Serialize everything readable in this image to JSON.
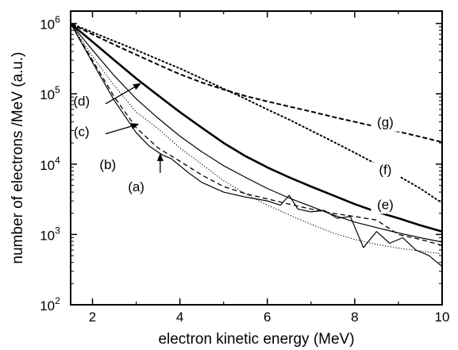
{
  "chart_data": {
    "type": "line",
    "title": "",
    "xlabel": "electron kinetic energy (MeV)",
    "ylabel": "number of electrons /MeV (a.u.)",
    "xlim": [
      1.5,
      10
    ],
    "ylim": [
      100,
      1500000
    ],
    "yscale": "log",
    "grid": false,
    "x_ticks": [
      2,
      4,
      6,
      8,
      10
    ],
    "y_ticks": [
      {
        "base": "10",
        "exp": "2",
        "value": 100
      },
      {
        "base": "10",
        "exp": "3",
        "value": 1000
      },
      {
        "base": "10",
        "exp": "4",
        "value": 10000
      },
      {
        "base": "10",
        "exp": "5",
        "value": 100000
      },
      {
        "base": "10",
        "exp": "6",
        "value": 1000000
      }
    ],
    "series": [
      {
        "name": "(a)",
        "style": "solid-thin",
        "color": "#000000",
        "x": [
          1.5,
          2.0,
          2.5,
          3.0,
          3.3,
          3.6,
          3.8,
          4.0,
          4.2,
          4.5,
          5.0,
          5.5,
          6.0,
          6.3,
          6.5,
          6.7,
          7.0,
          7.3,
          7.6,
          7.9,
          8.2,
          8.5,
          8.8,
          9.1,
          9.4,
          9.7,
          10.0
        ],
        "y": [
          1000000,
          280000,
          80000,
          28000,
          18000,
          13500,
          12000,
          9500,
          7500,
          5500,
          4000,
          3400,
          3000,
          2600,
          3600,
          2300,
          2100,
          2200,
          1700,
          1800,
          650,
          1100,
          750,
          900,
          600,
          500,
          350
        ]
      },
      {
        "name": "(b)",
        "style": "dashed",
        "color": "#000000",
        "x": [
          1.5,
          2.0,
          2.5,
          3.0,
          3.5,
          4.0,
          4.5,
          5.0,
          5.5,
          6.0,
          6.5,
          7.0,
          7.5,
          8.0,
          8.5,
          9.0,
          9.5,
          10.0
        ],
        "y": [
          1000000,
          300000,
          90000,
          33000,
          17000,
          11000,
          7000,
          4800,
          3800,
          3200,
          2700,
          2300,
          2000,
          1800,
          1600,
          1000,
          850,
          700
        ]
      },
      {
        "name": "(c)",
        "style": "dotted-fine",
        "color": "#000000",
        "x": [
          1.5,
          2.0,
          2.5,
          3.0,
          3.5,
          4.0,
          4.5,
          5.0,
          5.5,
          6.0,
          6.5,
          7.0,
          7.5,
          8.0,
          8.5,
          9.0,
          9.5,
          10.0
        ],
        "y": [
          1000000,
          340000,
          130000,
          55000,
          32000,
          17000,
          10000,
          5800,
          3800,
          2600,
          1900,
          1400,
          1050,
          850,
          720,
          640,
          580,
          530
        ]
      },
      {
        "name": "(d)",
        "style": "solid-thin",
        "color": "#000000",
        "x": [
          1.5,
          2.0,
          2.5,
          3.0,
          3.5,
          4.0,
          4.5,
          5.0,
          5.5,
          6.0,
          6.5,
          7.0,
          7.5,
          8.0,
          8.5,
          9.0,
          9.5,
          10.0
        ],
        "y": [
          1000000,
          420000,
          180000,
          85000,
          45000,
          25000,
          15000,
          9500,
          6500,
          4500,
          3300,
          2500,
          1900,
          1500,
          1250,
          1050,
          900,
          780
        ]
      },
      {
        "name": "(e)",
        "style": "solid-thick",
        "color": "#000000",
        "x": [
          1.5,
          2.0,
          2.5,
          3.0,
          3.5,
          4.0,
          4.5,
          5.0,
          5.5,
          6.0,
          6.5,
          7.0,
          7.5,
          8.0,
          8.5,
          9.0,
          9.5,
          10.0
        ],
        "y": [
          1000000,
          550000,
          300000,
          165000,
          95000,
          55000,
          33000,
          20000,
          13000,
          9000,
          6500,
          4800,
          3600,
          2700,
          2100,
          1700,
          1350,
          1100
        ]
      },
      {
        "name": "(f)",
        "style": "dotted",
        "color": "#000000",
        "x": [
          1.5,
          2.0,
          2.5,
          3.0,
          3.5,
          4.0,
          4.5,
          5.0,
          5.5,
          6.0,
          6.5,
          7.0,
          7.5,
          8.0,
          8.5,
          9.0,
          9.5,
          10.0
        ],
        "y": [
          1000000,
          750000,
          560000,
          420000,
          310000,
          230000,
          165000,
          118000,
          85000,
          60000,
          43000,
          30000,
          21000,
          14500,
          10000,
          6800,
          4500,
          2800
        ]
      },
      {
        "name": "(g)",
        "style": "dashed-thick",
        "color": "#000000",
        "x": [
          1.5,
          2.0,
          2.5,
          3.0,
          3.5,
          4.0,
          4.5,
          5.0,
          5.5,
          6.0,
          6.5,
          7.0,
          7.5,
          8.0,
          8.5,
          9.0,
          9.5,
          10.0
        ],
        "y": [
          1000000,
          700000,
          500000,
          360000,
          260000,
          190000,
          145000,
          115000,
          93000,
          78000,
          66000,
          56000,
          47000,
          40000,
          34000,
          29000,
          24500,
          20500
        ]
      }
    ],
    "annotations": [
      {
        "text": "(a)",
        "text_pos": [
          3.0,
          4100
        ],
        "arrow_from": [
          3.55,
          7500
        ],
        "arrow_to": [
          3.55,
          14000
        ]
      },
      {
        "text": "(b)",
        "text_pos": [
          2.35,
          8500
        ]
      },
      {
        "text": "(c)",
        "text_pos": [
          1.75,
          25000
        ],
        "arrow_from": [
          2.3,
          27000
        ],
        "arrow_to": [
          3.05,
          37000
        ]
      },
      {
        "text": "(d)",
        "text_pos": [
          1.75,
          68000
        ],
        "arrow_from": [
          2.3,
          72000
        ],
        "arrow_to": [
          3.1,
          140000
        ]
      },
      {
        "text": "(e)",
        "text_pos": [
          8.7,
          2300
        ]
      },
      {
        "text": "(f)",
        "text_pos": [
          8.7,
          7200
        ]
      },
      {
        "text": "(g)",
        "text_pos": [
          8.7,
          34000
        ]
      }
    ]
  }
}
